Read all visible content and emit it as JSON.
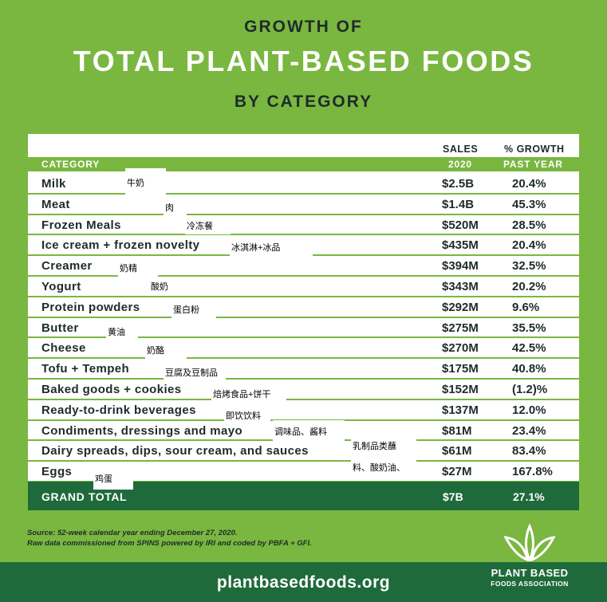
{
  "header": {
    "line1": "GROWTH OF",
    "line2": "TOTAL PLANT-BASED FOODS",
    "line3": "BY CATEGORY"
  },
  "table": {
    "col_sales_top": "SALES",
    "col_growth_top": "% GROWTH",
    "col_category": "CATEGORY",
    "col_sales_bottom": "2020",
    "col_growth_bottom": "PAST YEAR",
    "total_label": "GRAND TOTAL",
    "total_sales": "$7B",
    "total_growth": "27.1%"
  },
  "chart_data": {
    "type": "table",
    "title": "GROWTH OF TOTAL PLANT-BASED FOODS BY CATEGORY",
    "columns": [
      "CATEGORY",
      "SALES 2020",
      "% GROWTH PAST YEAR"
    ],
    "rows": [
      {
        "category": "Milk",
        "sales": "$2.5B",
        "growth": "20.4%"
      },
      {
        "category": "Meat",
        "sales": "$1.4B",
        "growth": "45.3%"
      },
      {
        "category": "Frozen Meals",
        "sales": "$520M",
        "growth": "28.5%"
      },
      {
        "category": "Ice cream + frozen novelty",
        "sales": "$435M",
        "growth": "20.4%"
      },
      {
        "category": "Creamer",
        "sales": "$394M",
        "growth": "32.5%"
      },
      {
        "category": "Yogurt",
        "sales": "$343M",
        "growth": "20.2%"
      },
      {
        "category": "Protein powders",
        "sales": "$292M",
        "growth": "9.6%"
      },
      {
        "category": "Butter",
        "sales": "$275M",
        "growth": "35.5%"
      },
      {
        "category": "Cheese",
        "sales": "$270M",
        "growth": "42.5%"
      },
      {
        "category": "Tofu + Tempeh",
        "sales": "$175M",
        "growth": "40.8%"
      },
      {
        "category": "Baked goods + cookies",
        "sales": "$152M",
        "growth": "(1.2)%"
      },
      {
        "category": "Ready-to-drink beverages",
        "sales": "$137M",
        "growth": "12.0%"
      },
      {
        "category": "Condiments, dressings and mayo",
        "sales": "$81M",
        "growth": "23.4%"
      },
      {
        "category": "Dairy spreads, dips, sour cream, and sauces",
        "sales": "$61M",
        "growth": "83.4%"
      },
      {
        "category": "Eggs",
        "sales": "$27M",
        "growth": "167.8%"
      }
    ],
    "total": {
      "category": "GRAND TOTAL",
      "sales": "$7B",
      "growth": "27.1%"
    }
  },
  "annotations": [
    "牛奶",
    "肉",
    "冷冻餐",
    "冰淇淋+冰品",
    "奶精",
    "酸奶",
    "蛋白粉",
    "黄油",
    "奶酪",
    "豆腐及豆制品",
    "焙烤食品+饼干",
    "即饮饮料",
    "调味品、酱料",
    "乳制品类蘸",
    "料、酸奶油、",
    "鸡蛋"
  ],
  "footer": {
    "source_line1": "Source: 52-week calendar year ending December 27, 2020.",
    "source_line2": "Raw data commissioned from SPINS powered by IRI and coded by PBFA + GFI.",
    "url": "plantbasedfoods.org",
    "logo_line1": "PLANT BASED",
    "logo_line2": "FOODS ASSOCIATION"
  },
  "colors": {
    "background_green": "#7ab740",
    "dark_green": "#1f6a3b",
    "text_dark": "#1e2b2a",
    "white": "#ffffff"
  },
  "icons": [
    "plant-leaves-logo-icon"
  ]
}
